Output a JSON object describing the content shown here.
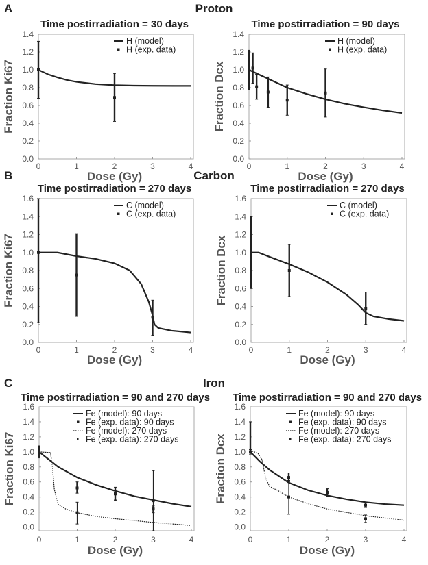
{
  "sections": [
    {
      "letter": "A",
      "title": "Proton"
    },
    {
      "letter": "B",
      "title": "Carbon"
    },
    {
      "letter": "C",
      "title": "Iron"
    }
  ],
  "chart_data": [
    {
      "type": "line",
      "section": "Proton",
      "title": "Time postirradiation = 30 days",
      "xlabel": "Dose (Gy)",
      "ylabel": "Fraction Ki67",
      "xlim": [
        0,
        4
      ],
      "ylim": [
        0,
        1.4
      ],
      "xticks": [
        0,
        1,
        2,
        3,
        4
      ],
      "yticks": [
        0,
        0.2,
        0.4,
        0.6,
        0.8,
        1.0,
        1.2,
        1.4
      ],
      "legend": "top-right",
      "series": [
        {
          "name": "H (model)",
          "style": "solid",
          "points": [
            [
              0,
              1.0
            ],
            [
              0.25,
              0.95
            ],
            [
              0.5,
              0.915
            ],
            [
              0.75,
              0.885
            ],
            [
              1,
              0.865
            ],
            [
              1.5,
              0.84
            ],
            [
              2,
              0.828
            ],
            [
              2.5,
              0.823
            ],
            [
              3,
              0.821
            ],
            [
              4,
              0.82
            ]
          ]
        },
        {
          "name": "H (exp. data)",
          "style": "marker",
          "points": [
            [
              0,
              1.0,
              0.68,
              1.32
            ],
            [
              2,
              0.69,
              0.42,
              0.96
            ]
          ]
        }
      ]
    },
    {
      "type": "line",
      "section": "Proton",
      "title": "Time postirradiation = 90 days",
      "xlabel": "Dose (Gy)",
      "ylabel": "Fraction Dcx",
      "xlim": [
        0,
        4
      ],
      "ylim": [
        0,
        1.4
      ],
      "xticks": [
        0,
        1,
        2,
        3,
        4
      ],
      "yticks": [
        0,
        0.2,
        0.4,
        0.6,
        0.8,
        1.0,
        1.2,
        1.4
      ],
      "legend": "top-right",
      "series": [
        {
          "name": "H (model)",
          "style": "solid",
          "points": [
            [
              0,
              1.0
            ],
            [
              0.5,
              0.9
            ],
            [
              1,
              0.8
            ],
            [
              1.5,
              0.73
            ],
            [
              2,
              0.67
            ],
            [
              2.5,
              0.62
            ],
            [
              3,
              0.58
            ],
            [
              3.5,
              0.545
            ],
            [
              4,
              0.515
            ]
          ]
        },
        {
          "name": "H (exp. data)",
          "style": "marker",
          "points": [
            [
              0,
              1.0,
              0.78,
              1.22
            ],
            [
              0.1,
              1.02,
              0.85,
              1.19
            ],
            [
              0.2,
              0.81,
              0.67,
              0.95
            ],
            [
              0.5,
              0.75,
              0.58,
              0.92
            ],
            [
              1,
              0.66,
              0.49,
              0.83
            ],
            [
              2,
              0.74,
              0.47,
              1.01
            ]
          ]
        }
      ]
    },
    {
      "type": "line",
      "section": "Carbon",
      "title": "Time postirradiation = 270 days",
      "xlabel": "Dose (Gy)",
      "ylabel": "Fraction Ki67",
      "xlim": [
        0,
        4
      ],
      "ylim": [
        0,
        1.6
      ],
      "xticks": [
        0,
        1,
        2,
        3,
        4
      ],
      "yticks": [
        0,
        0.2,
        0.4,
        0.6,
        0.8,
        1.0,
        1.2,
        1.4,
        1.6
      ],
      "legend": "top-right",
      "series": [
        {
          "name": "C (model)",
          "style": "solid",
          "points": [
            [
              0,
              1.0
            ],
            [
              0.5,
              1.0
            ],
            [
              1,
              0.96
            ],
            [
              1.5,
              0.93
            ],
            [
              2,
              0.88
            ],
            [
              2.4,
              0.8
            ],
            [
              2.7,
              0.65
            ],
            [
              2.9,
              0.45
            ],
            [
              3.0,
              0.3
            ],
            [
              3.05,
              0.2
            ],
            [
              3.15,
              0.16
            ],
            [
              3.5,
              0.13
            ],
            [
              4,
              0.11
            ]
          ]
        },
        {
          "name": "C (exp. data)",
          "style": "marker",
          "points": [
            [
              0,
              1.0,
              0.22,
              1.6
            ],
            [
              1,
              0.75,
              0.29,
              1.21
            ],
            [
              3,
              0.28,
              0.08,
              0.47
            ]
          ]
        }
      ]
    },
    {
      "type": "line",
      "section": "Carbon",
      "title": "Time postirradiation = 270 days",
      "xlabel": "Dose (Gy)",
      "ylabel": "Fraction Dcx",
      "xlim": [
        0,
        4
      ],
      "ylim": [
        0,
        1.6
      ],
      "xticks": [
        0,
        1,
        2,
        3,
        4
      ],
      "yticks": [
        0,
        0.2,
        0.4,
        0.6,
        0.8,
        1.0,
        1.2,
        1.4,
        1.6
      ],
      "legend": "top-right",
      "series": [
        {
          "name": "C (model)",
          "style": "solid",
          "points": [
            [
              0,
              1.0
            ],
            [
              0.2,
              1.0
            ],
            [
              0.5,
              0.95
            ],
            [
              1,
              0.87
            ],
            [
              1.5,
              0.78
            ],
            [
              2,
              0.67
            ],
            [
              2.5,
              0.53
            ],
            [
              2.8,
              0.42
            ],
            [
              3.0,
              0.33
            ],
            [
              3.2,
              0.29
            ],
            [
              3.6,
              0.26
            ],
            [
              4,
              0.24
            ]
          ]
        },
        {
          "name": "C (exp. data)",
          "style": "marker",
          "points": [
            [
              0,
              1.0,
              0.6,
              1.4
            ],
            [
              1,
              0.8,
              0.51,
              1.09
            ],
            [
              3,
              0.38,
              0.2,
              0.56
            ]
          ]
        }
      ]
    },
    {
      "type": "line",
      "section": "Iron",
      "title": "Time postirradiation = 90 and 270 days",
      "xlabel": "Dose (Gy)",
      "ylabel": "Fraction Ki67",
      "xlim": [
        0,
        4
      ],
      "ylim": [
        -0.05,
        1.6
      ],
      "xticks": [
        0,
        1,
        2,
        3,
        4
      ],
      "yticks": [
        0,
        0.2,
        0.4,
        0.6,
        0.8,
        1.0,
        1.2,
        1.4,
        1.6
      ],
      "legend": "top-right",
      "series": [
        {
          "name": "Fe (model): 90 days",
          "style": "solid",
          "points": [
            [
              0,
              1.0
            ],
            [
              0.25,
              0.9
            ],
            [
              0.5,
              0.8
            ],
            [
              1,
              0.66
            ],
            [
              1.5,
              0.56
            ],
            [
              2,
              0.48
            ],
            [
              2.5,
              0.41
            ],
            [
              3,
              0.36
            ],
            [
              3.5,
              0.31
            ],
            [
              4,
              0.27
            ]
          ]
        },
        {
          "name": "Fe (exp. data): 90 days",
          "style": "marker",
          "points": [
            [
              0,
              1.0,
              0.93,
              1.08
            ],
            [
              1,
              0.52,
              0.45,
              0.6
            ],
            [
              2,
              0.44,
              0.35,
              0.53
            ],
            [
              3,
              0.24,
              0.19,
              0.28
            ]
          ]
        },
        {
          "name": "Fe (model): 270 days",
          "style": "dotted",
          "points": [
            [
              0,
              1.0
            ],
            [
              0.3,
              0.99
            ],
            [
              0.35,
              0.8
            ],
            [
              0.4,
              0.5
            ],
            [
              0.5,
              0.3
            ],
            [
              0.7,
              0.24
            ],
            [
              1,
              0.19
            ],
            [
              1.5,
              0.14
            ],
            [
              2,
              0.11
            ],
            [
              3,
              0.06
            ],
            [
              4,
              0.02
            ]
          ]
        },
        {
          "name": "Fe (exp. data): 270 days",
          "style": "thinmarker",
          "points": [
            [
              0,
              1.0,
              0.92,
              1.08
            ],
            [
              1,
              0.19,
              0.04,
              0.33
            ],
            [
              2,
              0.45,
              0.36,
              0.52
            ],
            [
              3,
              0.35,
              -0.05,
              0.75
            ]
          ]
        }
      ]
    },
    {
      "type": "line",
      "section": "Iron",
      "title": "Time postirradiation = 90 and 270 days",
      "xlabel": "Dose (Gy)",
      "ylabel": "Fraction Dcx",
      "xlim": [
        0,
        4
      ],
      "ylim": [
        -0.05,
        1.6
      ],
      "xticks": [
        0,
        1,
        2,
        3,
        4
      ],
      "yticks": [
        0,
        0.2,
        0.4,
        0.6,
        0.8,
        1.0,
        1.2,
        1.4,
        1.6
      ],
      "legend": "top-right",
      "series": [
        {
          "name": "Fe (model): 90 days",
          "style": "solid",
          "points": [
            [
              0,
              1.0
            ],
            [
              0.25,
              0.87
            ],
            [
              0.5,
              0.76
            ],
            [
              1,
              0.59
            ],
            [
              1.5,
              0.49
            ],
            [
              2,
              0.42
            ],
            [
              2.5,
              0.37
            ],
            [
              3,
              0.33
            ],
            [
              3.5,
              0.305
            ],
            [
              4,
              0.29
            ]
          ]
        },
        {
          "name": "Fe (exp. data): 90 days",
          "style": "marker",
          "points": [
            [
              0,
              1.0,
              1.0,
              1.4
            ],
            [
              1,
              0.66,
              0.6,
              0.72
            ],
            [
              2,
              0.46,
              0.41,
              0.51
            ],
            [
              3,
              0.29,
              0.26,
              0.32
            ]
          ]
        },
        {
          "name": "Fe (model): 270 days",
          "style": "dotted",
          "points": [
            [
              0,
              1.02
            ],
            [
              0.2,
              0.98
            ],
            [
              0.3,
              0.9
            ],
            [
              0.4,
              0.65
            ],
            [
              0.5,
              0.54
            ],
            [
              0.7,
              0.49
            ],
            [
              1,
              0.4
            ],
            [
              1.5,
              0.31
            ],
            [
              2,
              0.24
            ],
            [
              3,
              0.15
            ],
            [
              4,
              0.09
            ]
          ]
        },
        {
          "name": "Fe (exp. data): 270 days",
          "style": "thinmarker",
          "points": [
            [
              0,
              1.0,
              0.97,
              1.03
            ],
            [
              1,
              0.4,
              0.17,
              0.62
            ],
            [
              3,
              0.11,
              0.06,
              0.16
            ]
          ]
        }
      ]
    }
  ]
}
